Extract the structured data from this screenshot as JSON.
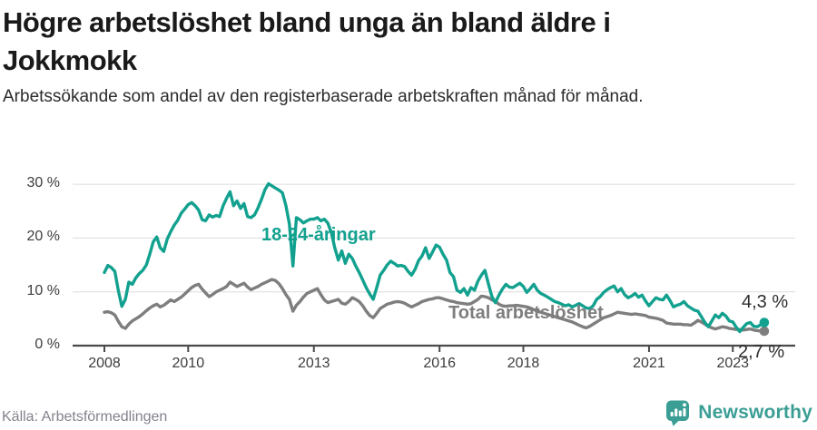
{
  "chart_data": {
    "type": "line",
    "title": "Högre arbetslöshet bland unga än bland äldre i Jokkmokk",
    "subtitle": "Arbetssökande som andel av den registerbaserade arbetskraften månad för månad.",
    "source": "Källa: Arbetsförmedlingen",
    "x_unit": "month",
    "x_start": "2008-01",
    "x_end": "2023-10",
    "ylim": [
      0,
      31.6
    ],
    "grid": "horizontal",
    "legend_position": "inline-labels",
    "y_ticks": [
      {
        "value": 0,
        "label": "0 %"
      },
      {
        "value": 10,
        "label": "10 %"
      },
      {
        "value": 20,
        "label": "20 %"
      },
      {
        "value": 30,
        "label": "30 %"
      }
    ],
    "x_ticks": [
      {
        "value": 2008,
        "label": "2008"
      },
      {
        "value": 2010,
        "label": "2010"
      },
      {
        "value": 2013,
        "label": "2013"
      },
      {
        "value": 2016,
        "label": "2016"
      },
      {
        "value": 2018,
        "label": "2018"
      },
      {
        "value": 2021,
        "label": "2021"
      },
      {
        "value": 2023,
        "label": "2023"
      }
    ],
    "series": [
      {
        "name": "18-24-åringar",
        "color": "#13A18F",
        "end_label": "4,3 %",
        "last_value": 4.3,
        "values": [
          13.6,
          14.9,
          14.5,
          13.8,
          10.2,
          7.3,
          8.6,
          11.8,
          11.4,
          12.6,
          13.4,
          14.0,
          15.0,
          17.0,
          19.3,
          20.2,
          18.2,
          17.5,
          19.8,
          21.2,
          22.4,
          23.3,
          24.6,
          25.4,
          26.2,
          26.6,
          26.0,
          25.2,
          23.4,
          23.2,
          24.3,
          23.9,
          24.2,
          24.0,
          26.0,
          27.4,
          28.6,
          26.0,
          26.9,
          25.5,
          26.4,
          24.0,
          23.8,
          24.3,
          25.6,
          27.2,
          29.0,
          30.1,
          29.7,
          29.3,
          28.9,
          28.4,
          26.0,
          22.6,
          14.8,
          23.8,
          23.4,
          22.8,
          23.2,
          23.5,
          23.5,
          23.8,
          23.2,
          23.5,
          22.8,
          21.0,
          18.2,
          15.9,
          17.6,
          15.3,
          17.0,
          16.2,
          14.8,
          13.6,
          12.2,
          10.8,
          9.6,
          8.6,
          10.8,
          13.1,
          14.0,
          15.0,
          15.7,
          15.3,
          14.8,
          14.9,
          14.7,
          13.8,
          13.1,
          14.2,
          15.8,
          16.7,
          18.2,
          16.2,
          17.4,
          18.7,
          18.3,
          17.0,
          15.9,
          13.6,
          12.8,
          10.3,
          9.9,
          10.6,
          9.4,
          10.8,
          10.3,
          12.0,
          13.1,
          14.0,
          11.5,
          9.1,
          8.0,
          9.4,
          10.5,
          11.4,
          10.9,
          10.8,
          11.2,
          11.6,
          11.0,
          9.9,
          10.6,
          11.4,
          10.3,
          9.7,
          9.4,
          9.0,
          8.6,
          8.2,
          8.0,
          7.7,
          7.4,
          7.6,
          7.2,
          7.5,
          7.8,
          7.4,
          7.0,
          6.9,
          7.4,
          8.6,
          9.1,
          9.9,
          10.4,
          10.8,
          11.1,
          10.0,
          10.6,
          9.5,
          8.9,
          9.2,
          9.7,
          9.0,
          9.4,
          8.3,
          7.4,
          8.2,
          8.9,
          8.6,
          8.5,
          9.4,
          8.4,
          7.2,
          7.5,
          7.7,
          8.2,
          7.4,
          7.0,
          6.6,
          6.4,
          5.4,
          4.3,
          3.5,
          4.6,
          5.7,
          5.2,
          6.0,
          5.5,
          4.6,
          4.4,
          3.4,
          2.6,
          3.4,
          4.1,
          4.3,
          3.6,
          3.5,
          3.9,
          4.3
        ]
      },
      {
        "name": "Total arbetslöshet",
        "color": "#7E7E7E",
        "end_label": "2,7 %",
        "last_value": 2.7,
        "values": [
          6.2,
          6.3,
          6.1,
          5.7,
          4.5,
          3.5,
          3.2,
          4.0,
          4.6,
          5.0,
          5.4,
          5.9,
          6.5,
          7.0,
          7.4,
          7.7,
          7.2,
          7.5,
          8.0,
          8.5,
          8.2,
          8.6,
          9.0,
          9.6,
          10.2,
          10.8,
          11.2,
          11.4,
          10.5,
          9.8,
          9.1,
          9.5,
          10.0,
          10.3,
          10.6,
          11.0,
          11.8,
          11.4,
          11.0,
          11.3,
          11.6,
          10.9,
          10.4,
          10.7,
          11.0,
          11.4,
          11.7,
          12.0,
          12.3,
          12.1,
          11.5,
          10.6,
          9.5,
          8.6,
          6.4,
          7.5,
          8.2,
          9.0,
          9.7,
          10.0,
          10.3,
          10.6,
          9.5,
          8.5,
          8.0,
          8.2,
          8.4,
          8.6,
          7.9,
          7.7,
          8.2,
          8.9,
          8.6,
          8.2,
          7.4,
          6.4,
          5.6,
          5.2,
          6.0,
          6.9,
          7.3,
          7.7,
          7.9,
          8.1,
          8.2,
          8.1,
          7.9,
          7.5,
          7.2,
          7.5,
          7.8,
          8.2,
          8.4,
          8.6,
          8.7,
          8.9,
          8.9,
          8.7,
          8.5,
          8.3,
          8.2,
          8.0,
          7.9,
          7.8,
          7.7,
          7.8,
          8.2,
          8.6,
          9.2,
          9.1,
          8.9,
          8.5,
          8.2,
          7.7,
          7.4,
          7.3,
          7.4,
          7.4,
          7.5,
          7.4,
          7.3,
          7.2,
          7.0,
          6.7,
          6.4,
          6.2,
          6.0,
          5.8,
          5.6,
          5.4,
          5.2,
          5.0,
          4.8,
          4.6,
          4.4,
          4.1,
          3.8,
          3.5,
          3.3,
          3.6,
          4.0,
          4.4,
          4.8,
          5.2,
          5.4,
          5.6,
          5.9,
          6.2,
          6.1,
          6.0,
          5.9,
          5.8,
          5.9,
          5.8,
          5.7,
          5.6,
          5.3,
          5.2,
          5.1,
          4.9,
          4.7,
          4.2,
          4.1,
          4.0,
          4.0,
          4.0,
          3.9,
          3.9,
          3.8,
          4.2,
          4.7,
          4.4,
          4.0,
          3.6,
          3.3,
          3.1,
          3.3,
          3.5,
          3.4,
          3.2,
          3.1,
          3.0,
          3.0,
          2.9,
          3.0,
          3.1,
          2.9,
          2.8,
          2.7,
          2.7
        ]
      }
    ]
  },
  "branding": {
    "name": "Newsworthy",
    "color": "#3B9E95",
    "icon": "bar-chart-speech-bubble"
  }
}
